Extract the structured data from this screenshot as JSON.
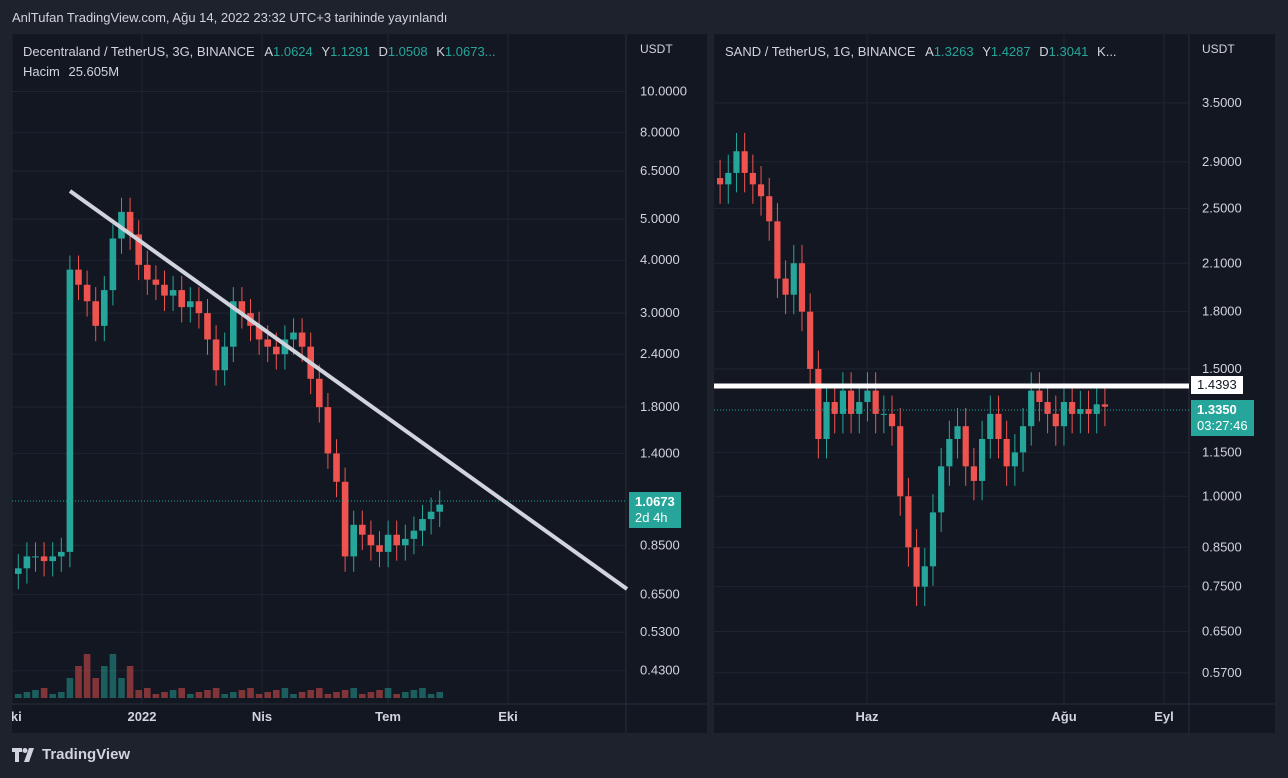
{
  "header": {
    "published": "AnlTufan TradingView.com, Ağu 14, 2022 23:32 UTC+3 tarihinde yayınlandı"
  },
  "footer": {
    "brand": "TradingView"
  },
  "colors": {
    "up": "#26a69a",
    "down": "#ef5350",
    "bg": "#131722",
    "frame": "#1e222d",
    "trendline": "#d1d4dc",
    "level": "#ffffff"
  },
  "left": {
    "symbol": "Decentraland / TetherUS, 3G, BINANCE",
    "ohlc": {
      "a_label": "A",
      "a": "1.0624",
      "y_label": "Y",
      "y": "1.1291",
      "d_label": "D",
      "d": "1.0508",
      "k_label": "K",
      "k": "1.0673..."
    },
    "volume_label": "Hacim",
    "volume_value": "25.605M",
    "unit": "USDT",
    "price_badge": {
      "price": "1.0673",
      "countdown": "2d 4h"
    },
    "y_ticks": [
      "10.0000",
      "8.0000",
      "6.5000",
      "5.0000",
      "4.0000",
      "3.0000",
      "2.4000",
      "1.8000",
      "1.4000",
      "0.8500",
      "0.6500",
      "0.5300",
      "0.4300"
    ],
    "x_ticks": [
      "Eki",
      "2022",
      "Nis",
      "Tem",
      "Eki"
    ]
  },
  "right": {
    "symbol": "SAND / TetherUS, 1G, BINANCE",
    "ohlc": {
      "a_label": "A",
      "a": "1.3263",
      "y_label": "Y",
      "y": "1.4287",
      "d_label": "D",
      "d": "1.3041",
      "k_label": "K",
      "k": "..."
    },
    "unit": "USDT",
    "level_badge": "1.4393",
    "price_badge": {
      "price": "1.3350",
      "countdown": "03:27:46"
    },
    "y_ticks": [
      "3.5000",
      "2.9000",
      "2.5000",
      "2.1000",
      "1.8000",
      "1.5000",
      "1.1500",
      "1.0000",
      "0.8500",
      "0.7500",
      "0.6500",
      "0.5700"
    ],
    "x_ticks": [
      "Haz",
      "Ağu",
      "Eyl"
    ]
  },
  "chart_data": [
    {
      "type": "candlestick",
      "title": "Decentraland / TetherUS, 3G, BINANCE",
      "scale": "log",
      "ylim": [
        0.4,
        11
      ],
      "x_ticks": [
        "Eki",
        "2022",
        "Nis",
        "Tem",
        "Eki"
      ],
      "last_close": 1.0673,
      "trendline": {
        "from": 5.5,
        "to": 0.68
      },
      "closes_approx": [
        0.75,
        0.8,
        0.8,
        0.78,
        0.8,
        0.82,
        3.8,
        3.5,
        3.2,
        2.8,
        3.4,
        4.5,
        5.2,
        4.6,
        3.9,
        3.6,
        3.5,
        3.3,
        3.4,
        3.1,
        3.2,
        3.0,
        2.6,
        2.2,
        2.5,
        3.2,
        3.0,
        2.8,
        2.6,
        2.5,
        2.4,
        2.6,
        2.7,
        2.5,
        2.1,
        1.8,
        1.4,
        1.2,
        0.8,
        0.95,
        0.9,
        0.85,
        0.82,
        0.9,
        0.85,
        0.88,
        0.92,
        0.98,
        1.02,
        1.06
      ]
    },
    {
      "type": "candlestick",
      "title": "SAND / TetherUS, 1G, BINANCE",
      "scale": "log",
      "ylim": [
        0.55,
        3.6
      ],
      "x_ticks": [
        "Haz",
        "Ağu",
        "Eyl"
      ],
      "horizontal_level": 1.4393,
      "last_close": 1.335,
      "closes_approx": [
        2.7,
        2.8,
        3.0,
        2.8,
        2.7,
        2.6,
        2.4,
        2.0,
        1.9,
        2.1,
        1.8,
        1.5,
        1.2,
        1.35,
        1.3,
        1.4,
        1.3,
        1.35,
        1.4,
        1.3,
        1.3,
        1.25,
        1.0,
        0.85,
        0.75,
        0.8,
        0.95,
        1.1,
        1.2,
        1.25,
        1.1,
        1.05,
        1.2,
        1.3,
        1.2,
        1.1,
        1.15,
        1.25,
        1.4,
        1.35,
        1.3,
        1.25,
        1.35,
        1.3,
        1.32,
        1.3,
        1.34,
        1.33
      ]
    }
  ]
}
